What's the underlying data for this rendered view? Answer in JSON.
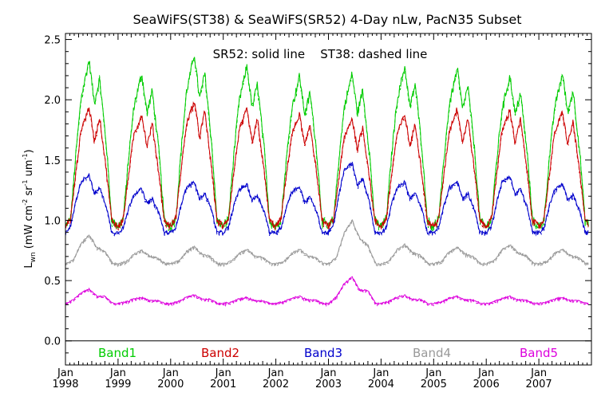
{
  "chart_data": {
    "type": "line",
    "title": "SeaWiFS(ST38) & SeaWiFS(SR52) 4-Day nLw, PacN35 Subset",
    "subtitle": "SR52: solid line    ST38: dashed line",
    "ylabel": "L_wn (mW cm^-2 sr^-1 um^-1)",
    "ylabel_main": "L",
    "ylabel_sub": "wn",
    "ylabel_units": "(mW cm",
    "ylabel_exp1": "-2",
    "ylabel_mid": " sr",
    "ylabel_exp2": "-1",
    "ylabel_end": " um",
    "ylabel_exp3": "-1",
    "ylabel_close": ")",
    "ylim": [
      -0.2,
      2.55
    ],
    "xlim": [
      1998.0,
      2008.0
    ],
    "y_ticks": [
      "0.0",
      "0.5",
      "1.0",
      "1.5",
      "2.0",
      "2.5"
    ],
    "x_ticks": [
      {
        "month": "Jan",
        "year": "1998"
      },
      {
        "month": "Jan",
        "year": "1999"
      },
      {
        "month": "Jan",
        "year": "2000"
      },
      {
        "month": "Jan",
        "year": "2001"
      },
      {
        "month": "Jan",
        "year": "2002"
      },
      {
        "month": "Jan",
        "year": "2003"
      },
      {
        "month": "Jan",
        "year": "2004"
      },
      {
        "month": "Jan",
        "year": "2005"
      },
      {
        "month": "Jan",
        "year": "2006"
      },
      {
        "month": "Jan",
        "year": "2007"
      }
    ],
    "zero_line": 0,
    "series": [
      {
        "name": "Band1",
        "color": "#00cc00",
        "x_start": 1998.0,
        "x_end": 2007.95,
        "cycle": [
          {
            "p": 0.0,
            "v": 0.95
          },
          {
            "p": 0.1,
            "v": 1.02
          },
          {
            "p": 0.2,
            "v": 1.55
          },
          {
            "p": 0.3,
            "v": 2.0
          },
          {
            "p": 0.45,
            "v": 2.3
          },
          {
            "p": 0.55,
            "v": 1.95
          },
          {
            "p": 0.65,
            "v": 2.15
          },
          {
            "p": 0.78,
            "v": 1.6
          },
          {
            "p": 0.88,
            "v": 1.0
          }
        ],
        "peaks": [
          2.33,
          2.22,
          2.38,
          2.28,
          2.2,
          2.22,
          2.28,
          2.26,
          2.2,
          2.22
        ]
      },
      {
        "name": "Band2",
        "color": "#cc0000",
        "x_start": 1998.0,
        "x_end": 2007.95,
        "cycle": [
          {
            "p": 0.0,
            "v": 0.95
          },
          {
            "p": 0.1,
            "v": 1.02
          },
          {
            "p": 0.2,
            "v": 1.4
          },
          {
            "p": 0.3,
            "v": 1.75
          },
          {
            "p": 0.45,
            "v": 1.93
          },
          {
            "p": 0.55,
            "v": 1.65
          },
          {
            "p": 0.65,
            "v": 1.85
          },
          {
            "p": 0.78,
            "v": 1.4
          },
          {
            "p": 0.88,
            "v": 1.0
          }
        ],
        "peaks": [
          1.94,
          1.88,
          1.99,
          1.92,
          1.88,
          1.85,
          1.88,
          1.93,
          1.92,
          1.9
        ]
      },
      {
        "name": "Band3",
        "color": "#0000cc",
        "x_start": 1998.0,
        "x_end": 2007.95,
        "cycle": [
          {
            "p": 0.0,
            "v": 0.9
          },
          {
            "p": 0.1,
            "v": 0.95
          },
          {
            "p": 0.2,
            "v": 1.15
          },
          {
            "p": 0.3,
            "v": 1.3
          },
          {
            "p": 0.45,
            "v": 1.35
          },
          {
            "p": 0.55,
            "v": 1.2
          },
          {
            "p": 0.65,
            "v": 1.25
          },
          {
            "p": 0.78,
            "v": 1.1
          },
          {
            "p": 0.88,
            "v": 0.9
          }
        ],
        "peaks": [
          1.38,
          1.26,
          1.32,
          1.3,
          1.28,
          1.48,
          1.32,
          1.32,
          1.37,
          1.3
        ]
      },
      {
        "name": "Band4",
        "color": "#999999",
        "x_start": 1998.0,
        "x_end": 2007.95,
        "cycle": [
          {
            "p": 0.0,
            "v": 0.64
          },
          {
            "p": 0.15,
            "v": 0.66
          },
          {
            "p": 0.3,
            "v": 0.74
          },
          {
            "p": 0.45,
            "v": 0.78
          },
          {
            "p": 0.6,
            "v": 0.72
          },
          {
            "p": 0.75,
            "v": 0.7
          },
          {
            "p": 0.9,
            "v": 0.64
          }
        ],
        "peaks": [
          0.88,
          0.75,
          0.78,
          0.76,
          0.76,
          1.0,
          0.8,
          0.78,
          0.8,
          0.76
        ]
      },
      {
        "name": "Band5",
        "color": "#dd00dd",
        "x_start": 1998.0,
        "x_end": 2007.95,
        "cycle": [
          {
            "p": 0.0,
            "v": 0.31
          },
          {
            "p": 0.15,
            "v": 0.32
          },
          {
            "p": 0.3,
            "v": 0.34
          },
          {
            "p": 0.45,
            "v": 0.35
          },
          {
            "p": 0.6,
            "v": 0.33
          },
          {
            "p": 0.75,
            "v": 0.33
          },
          {
            "p": 0.9,
            "v": 0.31
          }
        ],
        "peaks": [
          0.43,
          0.36,
          0.38,
          0.36,
          0.37,
          0.53,
          0.38,
          0.37,
          0.37,
          0.36
        ]
      }
    ],
    "legend": [
      {
        "label": "Band1",
        "color": "#00cc00"
      },
      {
        "label": "Band2",
        "color": "#cc0000"
      },
      {
        "label": "Band3",
        "color": "#0000cc"
      },
      {
        "label": "Band4",
        "color": "#999999"
      },
      {
        "label": "Band5",
        "color": "#dd00dd"
      }
    ],
    "legend_placement": "bottom, inside plot below zero line",
    "line_styles": {
      "SR52": "solid",
      "ST38": "dashed"
    }
  }
}
